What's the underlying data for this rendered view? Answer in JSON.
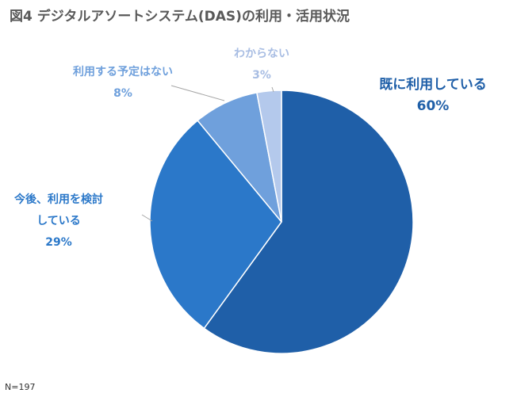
{
  "title": "図4 デジタルアソートシステム(DAS)の利用・活用状況",
  "note": "N=197",
  "chart_data": {
    "type": "pie",
    "title": "図4 デジタルアソートシステム(DAS)の利用・活用状況",
    "start": "12 o'clock",
    "direction": "clockwise",
    "slices": [
      {
        "label_lines": [
          "既に利用している"
        ],
        "value": 60,
        "value_label": "60%",
        "color": "#1f5fa8",
        "label_color": "#1f5fa8"
      },
      {
        "label_lines": [
          "今後、利用を検討",
          "している"
        ],
        "value": 29,
        "value_label": "29%",
        "color": "#2b78c9",
        "label_color": "#2b78c9"
      },
      {
        "label_lines": [
          "利用する予定はない"
        ],
        "value": 8,
        "value_label": "8%",
        "color": "#6fa0dc",
        "label_color": "#6fa0dc"
      },
      {
        "label_lines": [
          "わからない"
        ],
        "value": 3,
        "value_label": "3%",
        "color": "#b4c9ec",
        "label_color": "#a8bde3"
      }
    ]
  }
}
